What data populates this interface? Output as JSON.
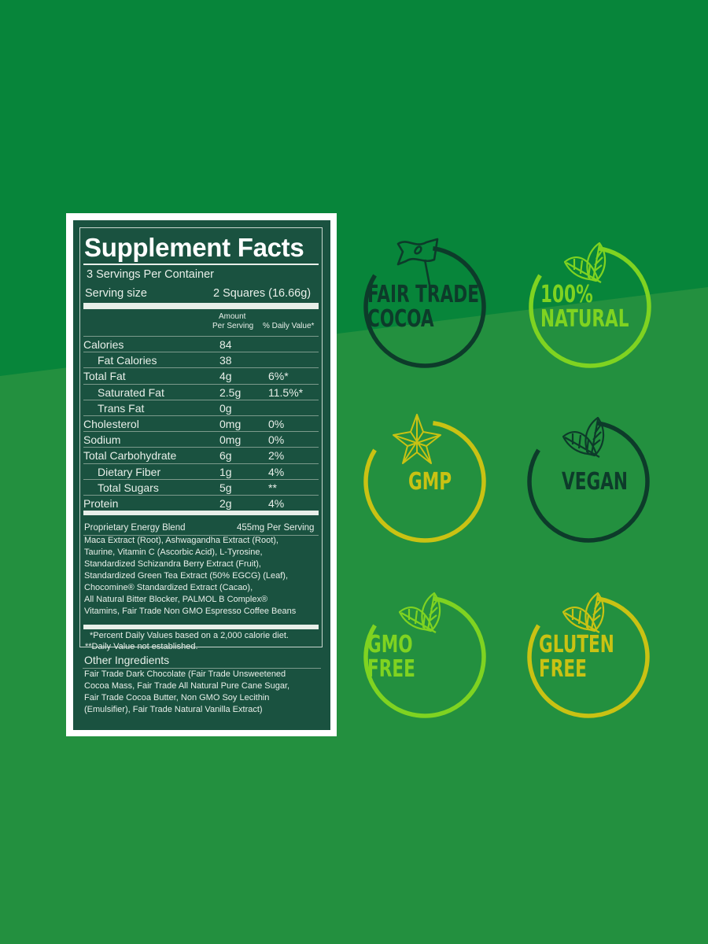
{
  "colors": {
    "bg_top": "#07853a",
    "bg_bottom": "#23903f",
    "panel": "#1a5240",
    "dark": "#0d3b2a",
    "lime": "#7fd321",
    "mustard": "#c9c213"
  },
  "facts": {
    "title": "Supplement Facts",
    "servings": "3 Servings Per Container",
    "serving_size_label": "Serving size",
    "serving_size_value": "2 Squares (16.66g)",
    "col_amount_1": "Amount",
    "col_amount_2": "Per Serving",
    "col_dv": "% Daily Value*",
    "rows": [
      {
        "name": "Calories",
        "amount": "84",
        "dv": ""
      },
      {
        "name": "Fat Calories",
        "amount": "38",
        "dv": ""
      },
      {
        "name": "Total Fat",
        "amount": "4g",
        "dv": "6%*"
      },
      {
        "name": "Saturated Fat",
        "amount": "2.5g",
        "dv": "11.5%*"
      },
      {
        "name": "Trans Fat",
        "amount": "0g",
        "dv": ""
      },
      {
        "name": "Cholesterol",
        "amount": "0mg",
        "dv": "0%"
      },
      {
        "name": "Sodium",
        "amount": "0mg",
        "dv": "0%"
      },
      {
        "name": "Total Carbohydrate",
        "amount": "6g",
        "dv": "2%"
      },
      {
        "name": "Dietary Fiber",
        "amount": "1g",
        "dv": "4%"
      },
      {
        "name": "Total Sugars",
        "amount": "5g",
        "dv": "**"
      },
      {
        "name": "Protein",
        "amount": "2g",
        "dv": "4%"
      }
    ],
    "blend_name": "Proprietary Energy Blend",
    "blend_amount": "455mg Per Serving",
    "blend_lines": [
      "Maca Extract (Root), Ashwagandha Extract (Root),",
      "Taurine, Vitamin C (Ascorbic Acid), L-Tyrosine,",
      "Standardized Schizandra Berry Extract (Fruit),",
      "Standardized Green Tea Extract (50% EGCG) (Leaf),",
      "Chocomine® Standardized Extract (Cacao),",
      "All Natural Bitter Blocker, PALMOL B Complex®",
      "Vitamins, Fair Trade Non GMO Espresso Coffee Beans"
    ],
    "footnote_1": "*Percent Daily Values based on a 2,000 calorie diet.",
    "footnote_2": "**Daily Value not established.",
    "other_title": "Other Ingredients",
    "other_lines": [
      "Fair Trade Dark Chocolate (Fair Trade Unsweetened",
      "Cocoa Mass, Fair Trade All Natural Pure Cane Sugar,",
      "Fair Trade Cocoa Butter, Non GMO Soy Lecithin",
      "(Emulsifier), Fair Trade Natural Vanilla Extract)"
    ]
  },
  "badges": [
    {
      "line1": "FAIR TRADE",
      "line2": "COCOA",
      "icon": "flag-leaf-icon",
      "color": "#0d3b2a"
    },
    {
      "line1": "100%",
      "line2": "NATURAL",
      "icon": "leaves-icon",
      "color": "#7fd321"
    },
    {
      "line1": "GMP",
      "line2": "",
      "icon": "star-icon",
      "color": "#c9c213"
    },
    {
      "line1": "VEGAN",
      "line2": "",
      "icon": "leaves-icon",
      "color": "#0d3b2a"
    },
    {
      "line1": "GMO",
      "line2": "FREE",
      "icon": "leaves-icon",
      "color": "#7fd321"
    },
    {
      "line1": "GLUTEN",
      "line2": "FREE",
      "icon": "leaves-icon",
      "color": "#c9c213"
    }
  ]
}
